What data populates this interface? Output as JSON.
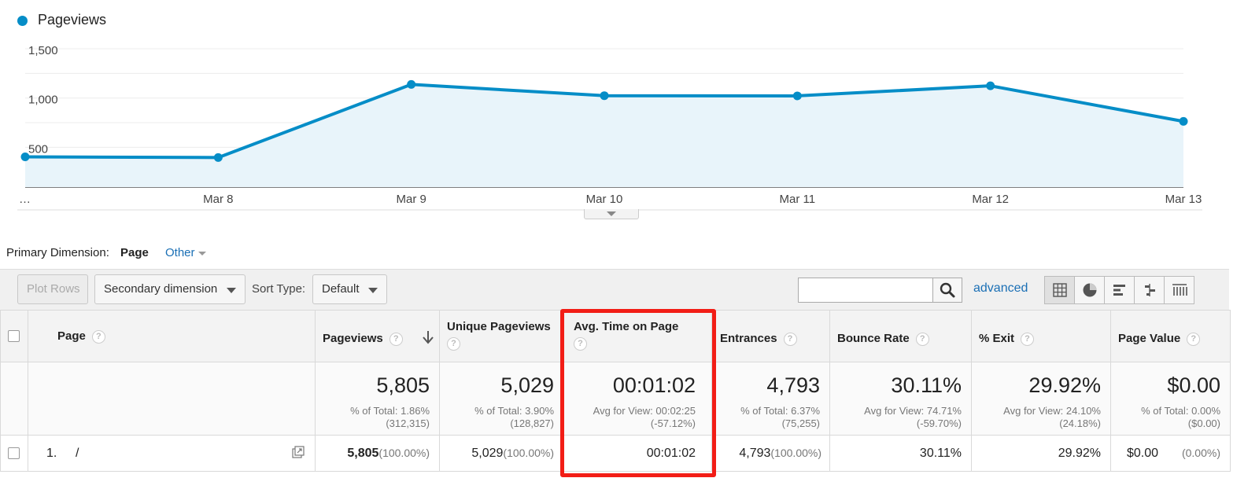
{
  "chart_data": {
    "type": "area",
    "series": [
      {
        "name": "Pageviews",
        "values": [
          403,
          396,
          1138,
          1024,
          1022,
          1124,
          763
        ]
      }
    ],
    "x": [
      "",
      "Mar 8",
      "Mar 9",
      "Mar 10",
      "Mar 11",
      "Mar 12",
      "Mar 13"
    ],
    "x_tick_labels": [
      "…",
      "Mar 8",
      "Mar 9",
      "Mar 10",
      "Mar 11",
      "Mar 12",
      "Mar 13"
    ],
    "y_ticks": [
      "1,500",
      "1,000",
      "500"
    ],
    "ylim": [
      0,
      1500
    ],
    "color": "#058dc7",
    "fill_color": "#e8f4fa",
    "grid": true,
    "legend": "top-left"
  },
  "legend": {
    "label": "Pageviews"
  },
  "primary_dimension": {
    "label": "Primary Dimension:",
    "active": "Page",
    "other": "Other"
  },
  "toolbar": {
    "plot_rows": "Plot Rows",
    "secondary_dimension": "Secondary dimension",
    "sort_type_label": "Sort Type:",
    "sort_type_value": "Default",
    "search_value": "",
    "advanced": "advanced",
    "view_icons": [
      "grid-view-icon",
      "pie-view-icon",
      "bar-view-icon",
      "comparison-view-icon",
      "pivot-view-icon"
    ]
  },
  "table": {
    "headers": {
      "page": "Page",
      "pageviews": "Pageviews",
      "unique_pageviews": "Unique Pageviews",
      "avg_time": "Avg. Time on Page",
      "entrances": "Entrances",
      "bounce_rate": "Bounce Rate",
      "exit": "% Exit",
      "page_value": "Page Value",
      "help": "?"
    },
    "totals": {
      "pageviews": {
        "value": "5,805",
        "line1": "% of Total: 1.86%",
        "line2": "(312,315)"
      },
      "unique_pageviews": {
        "value": "5,029",
        "line1": "% of Total: 3.90%",
        "line2": "(128,827)"
      },
      "avg_time": {
        "value": "00:01:02",
        "line1": "Avg for View: 00:02:25",
        "line2": "(-57.12%)"
      },
      "entrances": {
        "value": "4,793",
        "line1": "% of Total: 6.37%",
        "line2": "(75,255)"
      },
      "bounce_rate": {
        "value": "30.11%",
        "line1": "Avg for View: 74.71%",
        "line2": "(-59.70%)"
      },
      "exit": {
        "value": "29.92%",
        "line1": "Avg for View: 24.10%",
        "line2": "(24.18%)"
      },
      "page_value": {
        "value": "$0.00",
        "line1": "% of Total: 0.00%",
        "line2": "($0.00)"
      }
    },
    "rows": [
      {
        "index": "1.",
        "page": "/",
        "pageviews": "5,805",
        "pageviews_pct": "(100.00%)",
        "unique_pageviews": "5,029",
        "unique_pageviews_pct": "(100.00%)",
        "avg_time": "00:01:02",
        "entrances": "4,793",
        "entrances_pct": "(100.00%)",
        "bounce_rate": "30.11%",
        "exit": "29.92%",
        "page_value": "$0.00",
        "page_value_pct": "(0.00%)"
      }
    ]
  },
  "highlight_color": "#f21d16"
}
